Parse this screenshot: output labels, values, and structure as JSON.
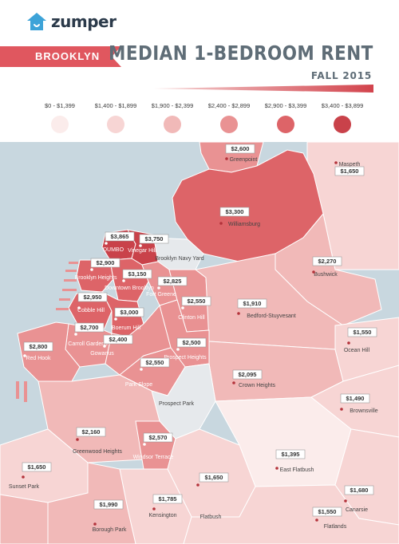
{
  "brand": {
    "name": "zumper"
  },
  "borough": "BROOKLYN",
  "title": "MEDIAN 1-BEDROOM RENT",
  "subtitle": "FALL 2015",
  "colors": {
    "ribbon": "#e0575f",
    "title": "#5f6d77",
    "water": "#c8d7df",
    "land_neutral": "#e6e9ec"
  },
  "legend": [
    {
      "label": "$0 - $1,399",
      "color": "#fbeceb"
    },
    {
      "label": "$1,400 - $1,899",
      "color": "#f7d5d4"
    },
    {
      "label": "$1,900 - $2,399",
      "color": "#f1b9b8"
    },
    {
      "label": "$2,400 - $2,899",
      "color": "#e99293"
    },
    {
      "label": "$2,900 - $3,399",
      "color": "#dd6468"
    },
    {
      "label": "$3,400 - $3,899",
      "color": "#c9424a"
    }
  ],
  "neighborhoods": [
    {
      "name": "Greenpoint",
      "rent": "$2,600"
    },
    {
      "name": "Maspeth",
      "rent": "$1,650"
    },
    {
      "name": "Williamsburg",
      "rent": "$3,300"
    },
    {
      "name": "DUMBO",
      "rent": "$3,865"
    },
    {
      "name": "Vinegar Hill",
      "rent": "$3,750"
    },
    {
      "name": "Brooklyn Navy Yard",
      "rent": ""
    },
    {
      "name": "Brooklyn Heights",
      "rent": "$2,900"
    },
    {
      "name": "Downtown Brooklyn",
      "rent": "$3,150"
    },
    {
      "name": "Fort Greene",
      "rent": "$2,825"
    },
    {
      "name": "Bushwick",
      "rent": "$2,270"
    },
    {
      "name": "Cobble Hill",
      "rent": "$2,950"
    },
    {
      "name": "Clinton Hill",
      "rent": "$2,550"
    },
    {
      "name": "Bedford-Stuyvesant",
      "rent": "$1,910"
    },
    {
      "name": "Boerum Hill",
      "rent": "$3,000"
    },
    {
      "name": "Carroll Gardens",
      "rent": "$2,700"
    },
    {
      "name": "Red Hook",
      "rent": "$2,800"
    },
    {
      "name": "Prospect Heights",
      "rent": "$2,500"
    },
    {
      "name": "Ocean Hill",
      "rent": "$1,550"
    },
    {
      "name": "Gowanus",
      "rent": "$2,400"
    },
    {
      "name": "Park Slope",
      "rent": "$2,550"
    },
    {
      "name": "Crown Heights",
      "rent": "$2,095"
    },
    {
      "name": "Brownsville",
      "rent": "$1,490"
    },
    {
      "name": "Prospect Park",
      "rent": ""
    },
    {
      "name": "Greenwood Heights",
      "rent": "$2,160"
    },
    {
      "name": "Windsor Terrace",
      "rent": "$2,570"
    },
    {
      "name": "East Flatbush",
      "rent": "$1,395"
    },
    {
      "name": "Sunset Park",
      "rent": "$1,650"
    },
    {
      "name": "Flatbush",
      "rent": "$1,650"
    },
    {
      "name": "Canarsie",
      "rent": "$1,680"
    },
    {
      "name": "Kensington",
      "rent": "$1,785"
    },
    {
      "name": "Borough Park",
      "rent": "$1,990"
    },
    {
      "name": "Flatlands",
      "rent": "$1,550"
    }
  ]
}
